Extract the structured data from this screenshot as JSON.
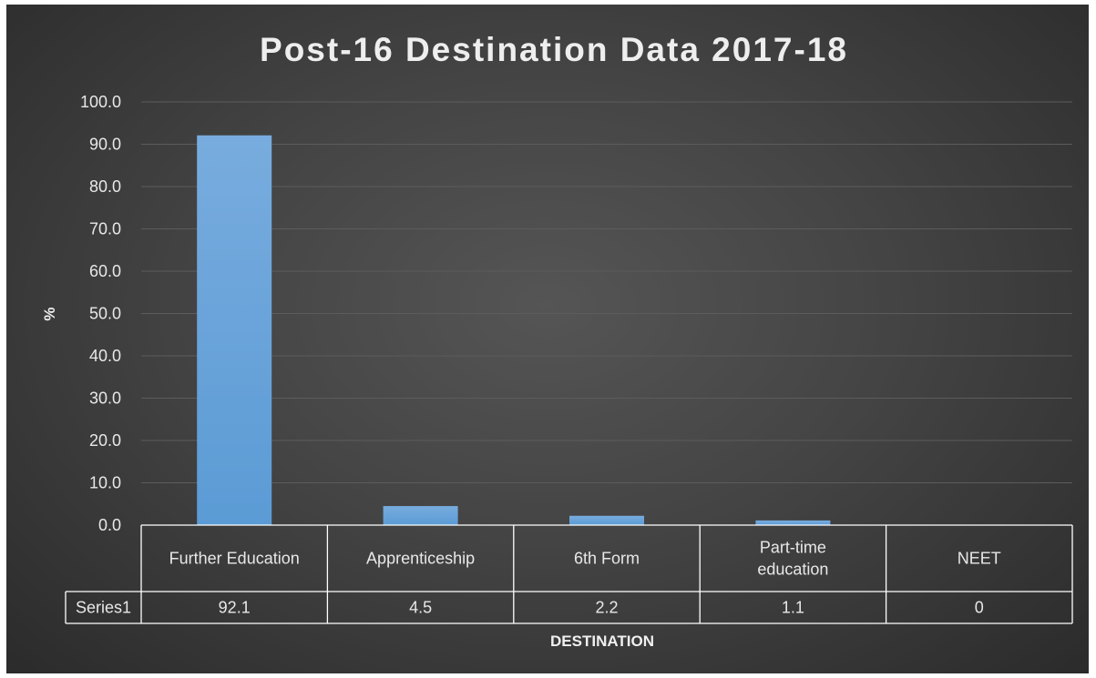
{
  "colors": {
    "bar": "#5b9bd5",
    "bar_light": "#78acde",
    "grid": "#5c5c5c",
    "table_line": "#ffffff",
    "text": "#e8e8e8"
  },
  "chart_data": {
    "type": "bar",
    "title": "Post-16 Destination Data 2017-18",
    "xlabel": "DESTINATION",
    "ylabel": "%",
    "ylim": [
      0,
      100
    ],
    "ytick_step": 10,
    "ytick_decimals": 1,
    "categories": [
      [
        "Further Education"
      ],
      [
        "Apprenticeship"
      ],
      [
        "6th Form"
      ],
      [
        "Part-time",
        "education"
      ],
      [
        "NEET"
      ]
    ],
    "series": [
      {
        "name": "Series1",
        "values": [
          92.1,
          4.5,
          2.2,
          1.1,
          0
        ],
        "display_values": [
          "92.1",
          "4.5",
          "2.2",
          "1.1",
          "0"
        ]
      }
    ],
    "grid": true,
    "legend": "data-table"
  }
}
